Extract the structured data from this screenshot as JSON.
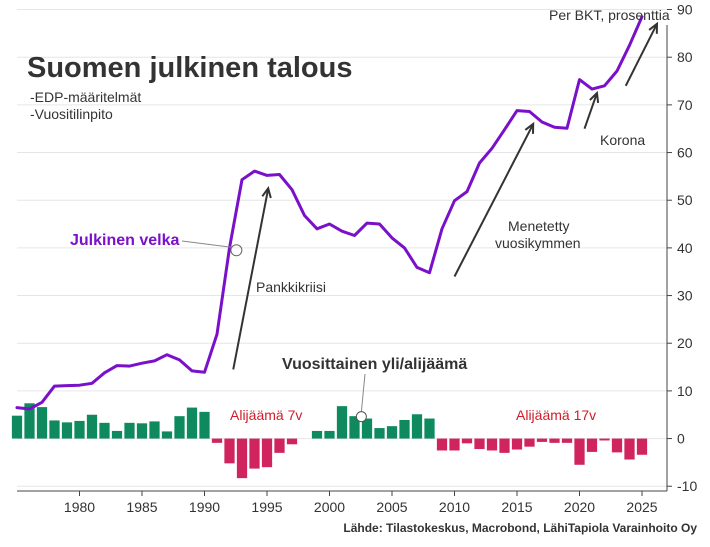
{
  "chart_data": {
    "type": "bar+line",
    "title": "Suomen julkinen talous",
    "subtitle_lines": [
      "-EDP-määritelmät",
      "-Vuositilinpito"
    ],
    "y_unit_label": "Per BKT, prosenttia",
    "source": "Lähde: Tilastokeskus, Macrobond, LähiTapiola Varainhoito Oy",
    "xlim": [
      1975,
      2027
    ],
    "ylim": [
      -11,
      92
    ],
    "x_ticks": [
      1980,
      1985,
      1990,
      1995,
      2000,
      2005,
      2010,
      2015,
      2020,
      2025
    ],
    "y_ticks": [
      -10,
      0,
      10,
      20,
      30,
      40,
      50,
      60,
      70,
      80,
      90
    ],
    "grid": true,
    "colors": {
      "debt_line": "#7a10c9",
      "surplus_bar": "#0f8a5f",
      "deficit_bar": "#d0245f",
      "arrow": "#333333",
      "deficit_text": "#d01c2a",
      "grid": "#e6e6e6"
    },
    "series": [
      {
        "name": "Julkinen velka",
        "kind": "line",
        "x": [
          1975,
          1976,
          1977,
          1978,
          1979,
          1980,
          1981,
          1982,
          1983,
          1984,
          1985,
          1986,
          1987,
          1988,
          1989,
          1990,
          1991,
          1992,
          1993,
          1994,
          1995,
          1996,
          1997,
          1998,
          1999,
          2000,
          2001,
          2002,
          2003,
          2004,
          2005,
          2006,
          2007,
          2008,
          2009,
          2010,
          2011,
          2012,
          2013,
          2014,
          2015,
          2016,
          2017,
          2018,
          2019,
          2020,
          2021,
          2022,
          2023,
          2024,
          2025
        ],
        "values": [
          6.5,
          6.2,
          7.6,
          11.0,
          11.1,
          11.2,
          11.6,
          13.8,
          15.3,
          15.2,
          15.8,
          16.3,
          17.6,
          16.5,
          14.2,
          13.9,
          21.9,
          40.0,
          54.3,
          56.1,
          55.2,
          55.4,
          52.2,
          46.8,
          44.0,
          45.0,
          43.5,
          42.6,
          45.2,
          45.0,
          42.1,
          40.0,
          35.9,
          34.8,
          44.0,
          49.9,
          51.8,
          57.8,
          60.9,
          64.8,
          68.8,
          68.6,
          66.4,
          65.3,
          65.1,
          75.3,
          73.3,
          74.0,
          77.1,
          82.5,
          88.5
        ]
      },
      {
        "name": "Vuosittainen yli/alijäämä",
        "kind": "bar",
        "x": [
          1975,
          1976,
          1977,
          1978,
          1979,
          1980,
          1981,
          1982,
          1983,
          1984,
          1985,
          1986,
          1987,
          1988,
          1989,
          1990,
          1991,
          1992,
          1993,
          1994,
          1995,
          1996,
          1997,
          1998,
          1999,
          2000,
          2001,
          2002,
          2003,
          2004,
          2005,
          2006,
          2007,
          2008,
          2009,
          2010,
          2011,
          2012,
          2013,
          2014,
          2015,
          2016,
          2017,
          2018,
          2019,
          2020,
          2021,
          2022,
          2023,
          2024,
          2025
        ],
        "values": [
          4.8,
          7.4,
          6.6,
          3.8,
          3.4,
          3.7,
          5.0,
          3.3,
          1.6,
          3.3,
          3.2,
          3.6,
          1.5,
          4.7,
          6.5,
          5.6,
          -0.9,
          -5.2,
          -8.3,
          -6.3,
          -6.0,
          -3.0,
          -1.2,
          0,
          1.6,
          1.6,
          6.8,
          4.7,
          4.2,
          2.2,
          2.6,
          3.9,
          5.1,
          4.2,
          -2.5,
          -2.5,
          -1.0,
          -2.2,
          -2.5,
          -3.0,
          -2.3,
          -1.7,
          -0.7,
          -0.9,
          -0.9,
          -5.5,
          -2.8,
          -0.4,
          -2.9,
          -4.4,
          -3.4
        ]
      }
    ],
    "annotations": {
      "debt_label": "Julkinen velka",
      "balance_label": "Vuosittainen yli/alijäämä",
      "pankkikriisi": "Pankkikriisi",
      "menetetty_1": "Menetetty",
      "menetetty_2": "vuosikymmen",
      "korona": "Korona",
      "alijaama7": "Alijäämä 7v",
      "alijaama17": "Alijäämä 17v"
    }
  }
}
